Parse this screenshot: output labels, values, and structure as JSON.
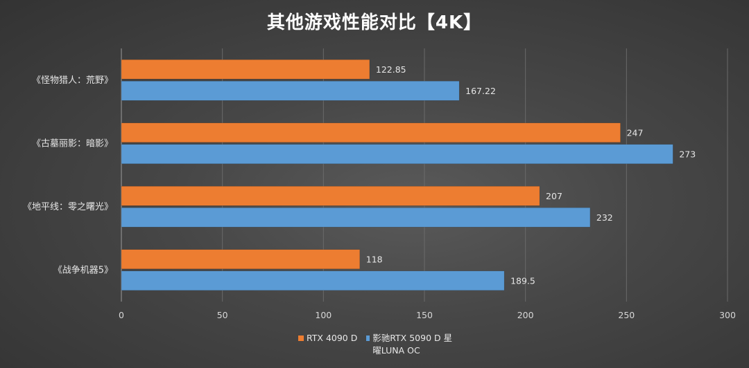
{
  "chart_data": {
    "type": "bar",
    "orientation": "horizontal",
    "title": "其他游戏性能对比【4K】",
    "categories": [
      "《怪物猎人：荒野》",
      "《古墓丽影：暗影》",
      "《地平线：零之曙光》",
      "《战争机器5》"
    ],
    "series": [
      {
        "name": "RTX 4090 D",
        "color": "#ED7D31",
        "values": [
          122.85,
          247,
          207,
          118
        ],
        "labels": [
          "122.85",
          "247",
          "207",
          "118"
        ]
      },
      {
        "name": "影驰RTX 5090 D 星曜LUNA OC",
        "color": "#5B9BD5",
        "values": [
          167.22,
          273,
          232,
          189.5
        ],
        "labels": [
          "167.22",
          "273",
          "232",
          "189.5"
        ]
      }
    ],
    "xlim": [
      0,
      300
    ],
    "xticks": [
      "0",
      "50",
      "100",
      "150",
      "200",
      "250",
      "300"
    ],
    "grid": "vertical",
    "legend_position": "bottom"
  }
}
